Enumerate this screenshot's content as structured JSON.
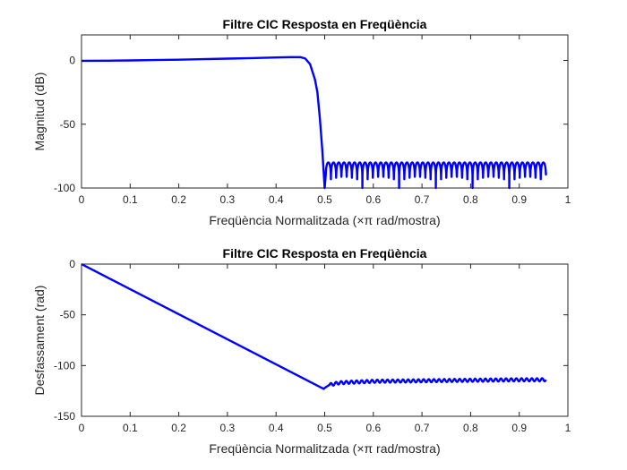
{
  "chart_data": [
    {
      "type": "line",
      "title": "Filtre CIC Resposta en Freqüència",
      "xlabel": "Freqüència Normalitzada (×π rad/mostra)",
      "ylabel": "Magnitud (dB)",
      "xlim": [
        0,
        1
      ],
      "ylim": [
        -100,
        20
      ],
      "xticks": [
        0,
        0.1,
        0.2,
        0.3,
        0.4,
        0.5,
        0.6,
        0.7,
        0.8,
        0.9,
        1
      ],
      "xtick_labels": [
        "0",
        "0.1",
        "0.2",
        "0.3",
        "0.4",
        "0.5",
        "0.6",
        "0.7",
        "0.8",
        "0.9",
        "1"
      ],
      "yticks": [
        -100,
        -50,
        0
      ],
      "ytick_labels": [
        "-100",
        "-50",
        "0"
      ],
      "grid": false,
      "color": "#0000ff",
      "series": [
        {
          "x": [
            0,
            0.05,
            0.1,
            0.15,
            0.2,
            0.25,
            0.3,
            0.35,
            0.4,
            0.43,
            0.45,
            0.46,
            0.47,
            0.48,
            0.485,
            0.49,
            0.495,
            0.5
          ],
          "y": [
            -0.3,
            -0.2,
            0.0,
            0.3,
            0.6,
            1.0,
            1.4,
            1.8,
            2.3,
            2.6,
            2.6,
            1.5,
            -3.0,
            -15.0,
            -25.0,
            -45.0,
            -70.0,
            -100.0
          ],
          "ripple": {
            "x_start": 0.502,
            "x_end": 0.955,
            "cycles": 42,
            "y_peak": -80,
            "y_trough": -100,
            "y_end": -88
          }
        }
      ]
    },
    {
      "type": "line",
      "title": "Filtre CIC Resposta en Freqüència",
      "xlabel": "Freqüència Normalitzada (×π rad/mostra)",
      "ylabel": "Desfassament (rad)",
      "xlim": [
        0,
        1
      ],
      "ylim": [
        -150,
        0
      ],
      "xticks": [
        0,
        0.1,
        0.2,
        0.3,
        0.4,
        0.5,
        0.6,
        0.7,
        0.8,
        0.9,
        1
      ],
      "xtick_labels": [
        "0",
        "0.1",
        "0.2",
        "0.3",
        "0.4",
        "0.5",
        "0.6",
        "0.7",
        "0.8",
        "0.9",
        "1"
      ],
      "yticks": [
        -150,
        -100,
        -50,
        0
      ],
      "ytick_labels": [
        "-150",
        "-100",
        "-50",
        "0"
      ],
      "grid": false,
      "color": "#0000ff",
      "series": [
        {
          "x": [
            0,
            0.498,
            0.5,
            0.51,
            0.53,
            0.55,
            0.6,
            0.7,
            0.8,
            0.9,
            0.955
          ],
          "y": [
            0,
            -123,
            -122,
            -119,
            -117,
            -116.5,
            -115.5,
            -115,
            -114.5,
            -114,
            -114
          ],
          "ripple": {
            "x_start": 0.51,
            "x_end": 0.955,
            "cycles": 42,
            "amplitude": 1.5
          }
        }
      ]
    }
  ]
}
